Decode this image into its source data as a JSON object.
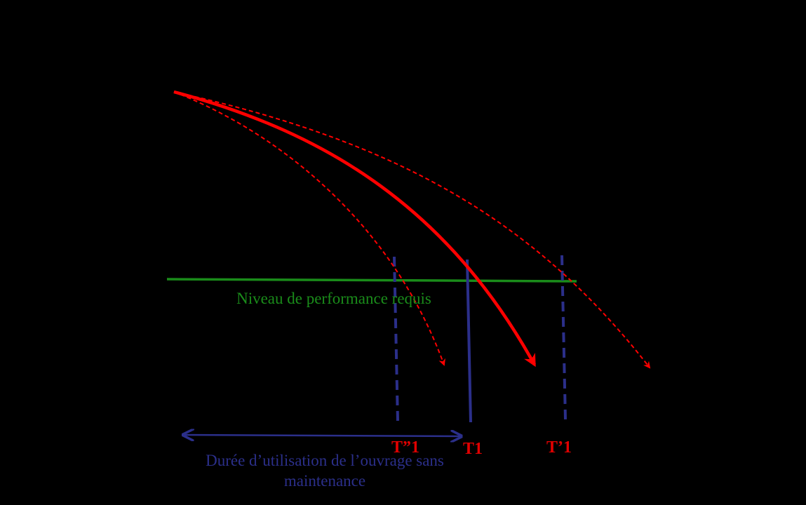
{
  "labels": {
    "required_level": "Niveau de performance requis",
    "t_second": "T”1",
    "t_nominal": "T1",
    "t_prime": "T’1",
    "duration_line1": "Durée d’utilisation de l’ouvrage sans",
    "duration_line2": "maintenance"
  },
  "colors": {
    "background": "#000000",
    "curve": "#ff0000",
    "required_level": "#1a8c1a",
    "marker_line": "#2b2f8a",
    "time_label": "#e00000",
    "duration": "#2b2f8a"
  }
}
